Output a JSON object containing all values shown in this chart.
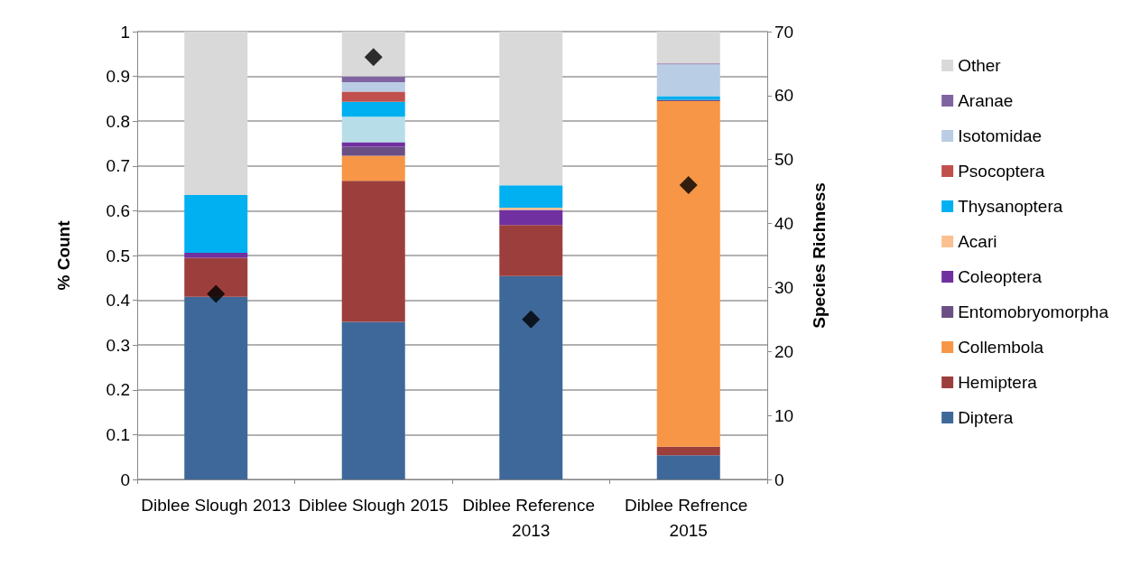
{
  "chart_data": {
    "type": "bar",
    "stacked": true,
    "ylabel": "% Count",
    "y2label": "Species Richness",
    "categories": [
      "Diblee Slough 2013",
      "Diblee Slough 2015",
      "Diblee Reference 2013",
      "Diblee Refrence 2015"
    ],
    "ylim": [
      0,
      1
    ],
    "yticks": [
      0,
      0.1,
      0.2,
      0.3,
      0.4,
      0.5,
      0.6,
      0.7,
      0.8,
      0.9,
      1
    ],
    "y2lim": [
      0,
      70
    ],
    "y2ticks": [
      0,
      10,
      20,
      30,
      40,
      50,
      60,
      70
    ],
    "grid": "y",
    "legend": "right",
    "series": [
      {
        "name": "Diptera",
        "color": "#3f689a",
        "values": [
          0.408,
          0.352,
          0.454,
          0.054
        ]
      },
      {
        "name": "Hemiptera",
        "color": "#9c3f3c",
        "values": [
          0.087,
          0.315,
          0.114,
          0.019
        ]
      },
      {
        "name": "Collembola",
        "color": "#f79646",
        "values": [
          null,
          0.056,
          null,
          0.772
        ]
      },
      {
        "name": "Entomobryomorpha",
        "color": "#6a4f84",
        "values": [
          null,
          0.02,
          null,
          0.003
        ]
      },
      {
        "name": "Coleoptera",
        "color": "#7030a0",
        "values": [
          0.011,
          0.01,
          0.034,
          null
        ]
      },
      {
        "name": "Acari",
        "color": "#fac090",
        "values": [
          null,
          null,
          0.005,
          null
        ]
      },
      {
        "color": "#b7dee8",
        "values": [
          null,
          0.057,
          null,
          null
        ]
      },
      {
        "name": "Thysanoptera",
        "color": "#00b0f0",
        "values": [
          0.129,
          0.033,
          0.05,
          0.008
        ]
      },
      {
        "name": "Psocoptera",
        "color": "#c0504d",
        "values": [
          null,
          0.023,
          null,
          null
        ]
      },
      {
        "name": "Isotomidae",
        "color": "#b9cde5",
        "values": [
          null,
          0.021,
          null,
          0.071
        ]
      },
      {
        "name": "Aranae",
        "color": "#8064a2",
        "values": [
          null,
          0.013,
          null,
          0.002
        ]
      },
      {
        "name": "Other",
        "color": "#d9d9d9",
        "values": [
          0.365,
          0.1,
          0.343,
          0.071
        ]
      },
      {
        "type": "scatter",
        "axis": "y2",
        "marker": "diamond",
        "color": "#000000",
        "x": [
          "Diblee Slough 2013",
          "Diblee Slough 2015",
          "Diblee Reference 2013",
          "Diblee Refrence 2015"
        ],
        "values": [
          29,
          66,
          25,
          46
        ]
      }
    ]
  }
}
